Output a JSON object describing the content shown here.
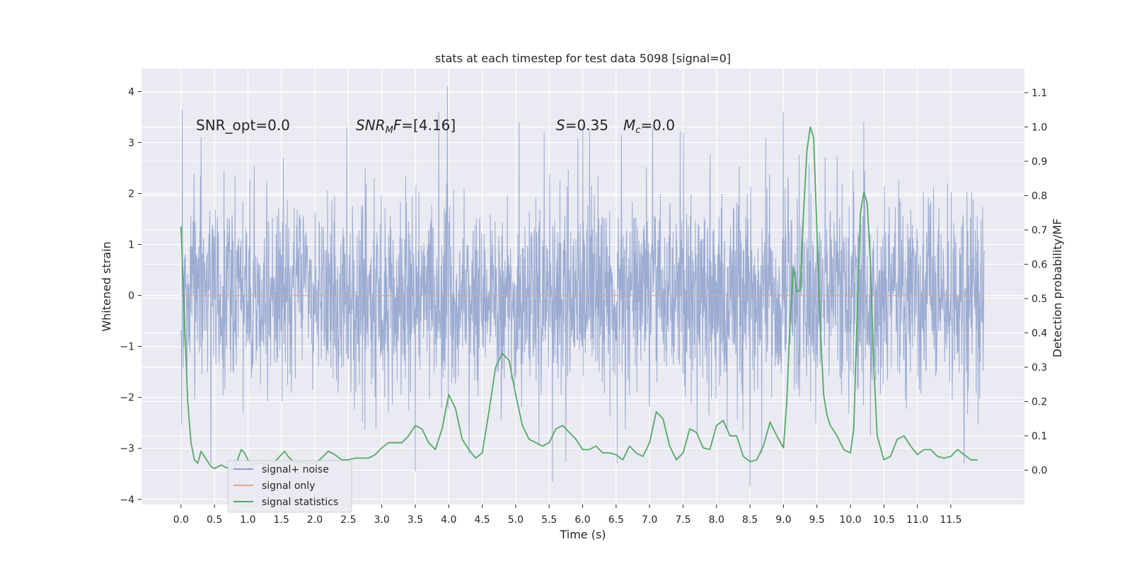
{
  "chart_data": {
    "type": "line",
    "title": "stats at each timestep for test data 5098 [signal=0]",
    "xlabel": "Time (s)",
    "ylabel": "Whitened strain",
    "y2label": "Detection probability/MF",
    "xlim": [
      -0.59,
      12.6
    ],
    "ylim": [
      -4.1,
      4.45
    ],
    "y2lim": [
      -0.1,
      1.17
    ],
    "x_ticks": [
      0.0,
      0.5,
      1.0,
      1.5,
      2.0,
      2.5,
      3.0,
      3.5,
      4.0,
      4.5,
      5.0,
      5.5,
      6.0,
      6.5,
      7.0,
      7.5,
      8.0,
      8.5,
      9.0,
      9.5,
      10.0,
      10.5,
      11.0,
      11.5
    ],
    "x_tick_labels": [
      "0.0",
      "0.5",
      "1.0",
      "1.5",
      "2.0",
      "2.5",
      "3.0",
      "3.5",
      "4.0",
      "4.5",
      "5.0",
      "5.5",
      "6.0",
      "6.5",
      "7.0",
      "7.5",
      "8.0",
      "8.5",
      "9.0",
      "9.5",
      "10.0",
      "10.5",
      "11.0",
      "11.5"
    ],
    "y_ticks": [
      -4,
      -3,
      -2,
      -1,
      0,
      1,
      2,
      3,
      4
    ],
    "y_tick_labels": [
      "−4",
      "−3",
      "−2",
      "−1",
      "0",
      "1",
      "2",
      "3",
      "4"
    ],
    "y2_ticks": [
      0.0,
      0.1,
      0.2,
      0.3,
      0.4,
      0.5,
      0.6,
      0.7,
      0.8,
      0.9,
      1.0,
      1.1
    ],
    "y2_tick_labels": [
      "0.0",
      "0.1",
      "0.2",
      "0.3",
      "0.4",
      "0.5",
      "0.6",
      "0.7",
      "0.8",
      "0.9",
      "1.0",
      "1.1"
    ],
    "grid": true,
    "legend_position": "lower-left",
    "annotations": {
      "snr_opt": "SNR_opt=0.0",
      "snr_mf_name": "SNR",
      "snr_mf_sub": "M",
      "snr_mf_var": "F",
      "snr_mf_value": "=[4.16]",
      "s_name": "S",
      "s_value": "=0.35",
      "mc_name": "M",
      "mc_sub": "c",
      "mc_value": "=0.0"
    },
    "series": [
      {
        "name": "signal+ noise",
        "color": "#8da0cb",
        "axis": "left",
        "kind": "noise",
        "x_range": [
          0.0,
          12.0
        ],
        "amplitude_std": 1.0,
        "peaks": [
          [
            0.02,
            3.65
          ],
          [
            0.3,
            3.1
          ],
          [
            2.48,
            3.3
          ],
          [
            3.98,
            4.1
          ],
          [
            3.85,
            3.6
          ],
          [
            5.05,
            3.4
          ],
          [
            6.0,
            3.35
          ],
          [
            6.58,
            3.15
          ],
          [
            9.0,
            3.6
          ],
          [
            10.2,
            3.4
          ],
          [
            8.5,
            -3.75
          ],
          [
            5.55,
            -3.65
          ],
          [
            0.45,
            -3.3
          ],
          [
            11.7,
            -3.3
          ],
          [
            3.5,
            -3.45
          ]
        ]
      },
      {
        "name": "signal only",
        "color": "#e5a38d",
        "axis": "left",
        "kind": "line",
        "x": [
          0.0,
          12.0
        ],
        "y": [
          0.0,
          0.0
        ]
      },
      {
        "name": "signal statistics",
        "color": "#55a868",
        "axis": "right",
        "kind": "line",
        "x": [
          0.0,
          0.05,
          0.1,
          0.15,
          0.2,
          0.25,
          0.3,
          0.35,
          0.4,
          0.45,
          0.5,
          0.6,
          0.7,
          0.8,
          0.9,
          0.95,
          1.0,
          1.05,
          1.1,
          1.2,
          1.3,
          1.4,
          1.5,
          1.55,
          1.6,
          1.7,
          1.8,
          1.9,
          2.0,
          2.1,
          2.2,
          2.3,
          2.4,
          2.5,
          2.6,
          2.7,
          2.8,
          2.9,
          3.0,
          3.1,
          3.2,
          3.3,
          3.4,
          3.5,
          3.6,
          3.7,
          3.8,
          3.9,
          4.0,
          4.1,
          4.2,
          4.3,
          4.4,
          4.5,
          4.6,
          4.7,
          4.8,
          4.9,
          5.0,
          5.1,
          5.2,
          5.3,
          5.4,
          5.5,
          5.6,
          5.7,
          5.8,
          5.9,
          6.0,
          6.1,
          6.2,
          6.3,
          6.4,
          6.5,
          6.6,
          6.7,
          6.8,
          6.9,
          7.0,
          7.1,
          7.2,
          7.3,
          7.4,
          7.5,
          7.6,
          7.7,
          7.8,
          7.9,
          8.0,
          8.1,
          8.2,
          8.3,
          8.4,
          8.5,
          8.6,
          8.7,
          8.8,
          8.9,
          9.0,
          9.05,
          9.1,
          9.15,
          9.2,
          9.25,
          9.3,
          9.35,
          9.4,
          9.45,
          9.5,
          9.55,
          9.6,
          9.65,
          9.7,
          9.8,
          9.9,
          10.0,
          10.05,
          10.1,
          10.15,
          10.2,
          10.25,
          10.3,
          10.35,
          10.4,
          10.5,
          10.6,
          10.7,
          10.8,
          10.9,
          11.0,
          11.1,
          11.2,
          11.3,
          11.4,
          11.5,
          11.6,
          11.7,
          11.8,
          11.9
        ],
        "y": [
          0.71,
          0.45,
          0.2,
          0.08,
          0.03,
          0.02,
          0.055,
          0.04,
          0.025,
          0.01,
          0.005,
          0.015,
          0.005,
          0.005,
          0.06,
          0.05,
          0.03,
          0.015,
          0.02,
          0.02,
          0.015,
          0.025,
          0.045,
          0.055,
          0.04,
          0.02,
          0.025,
          0.02,
          0.02,
          0.035,
          0.055,
          0.045,
          0.03,
          0.03,
          0.035,
          0.035,
          0.035,
          0.045,
          0.065,
          0.08,
          0.08,
          0.08,
          0.1,
          0.13,
          0.12,
          0.08,
          0.06,
          0.12,
          0.22,
          0.18,
          0.09,
          0.06,
          0.035,
          0.05,
          0.17,
          0.3,
          0.34,
          0.32,
          0.22,
          0.13,
          0.09,
          0.08,
          0.07,
          0.08,
          0.12,
          0.13,
          0.11,
          0.09,
          0.06,
          0.06,
          0.07,
          0.05,
          0.05,
          0.045,
          0.03,
          0.07,
          0.05,
          0.04,
          0.08,
          0.17,
          0.15,
          0.07,
          0.03,
          0.05,
          0.12,
          0.11,
          0.065,
          0.06,
          0.13,
          0.145,
          0.1,
          0.1,
          0.04,
          0.025,
          0.03,
          0.07,
          0.14,
          0.1,
          0.065,
          0.2,
          0.44,
          0.59,
          0.52,
          0.525,
          0.75,
          0.93,
          1.0,
          0.97,
          0.7,
          0.42,
          0.22,
          0.16,
          0.13,
          0.1,
          0.06,
          0.05,
          0.12,
          0.45,
          0.75,
          0.81,
          0.78,
          0.6,
          0.3,
          0.1,
          0.03,
          0.04,
          0.09,
          0.1,
          0.07,
          0.045,
          0.06,
          0.06,
          0.04,
          0.035,
          0.04,
          0.06,
          0.045,
          0.03,
          0.03
        ]
      }
    ]
  }
}
